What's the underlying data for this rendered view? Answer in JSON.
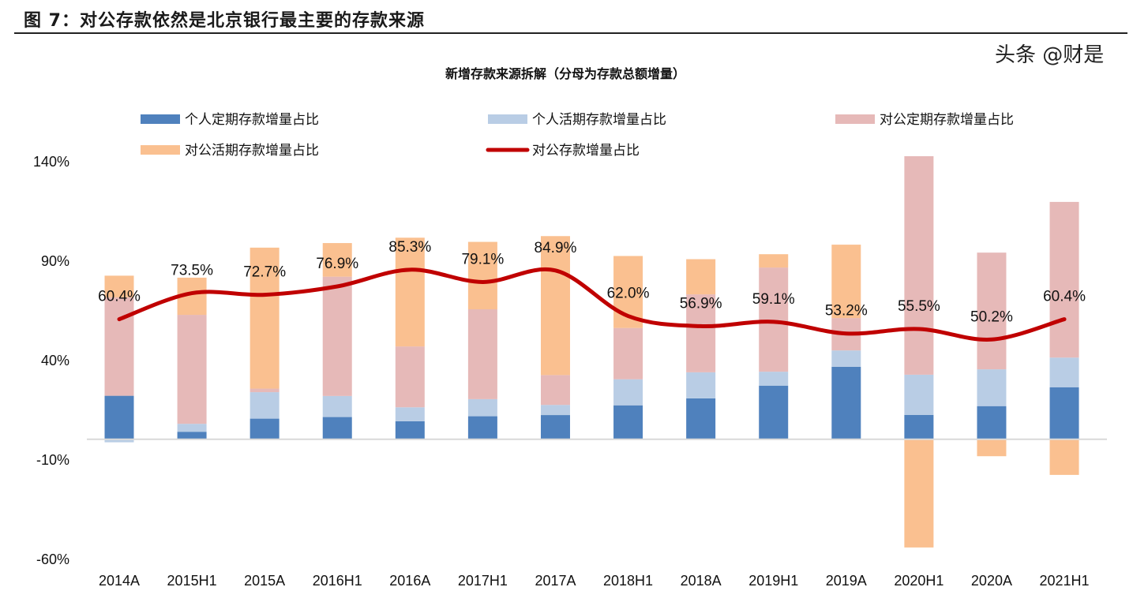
{
  "figure_title": "图 7：对公存款依然是北京银行最主要的存款来源",
  "watermark": "头条 @财是",
  "chart_data": {
    "type": "bar",
    "stacked": true,
    "title": "新增存款来源拆解（分母为存款总额增量）",
    "xlabel": "",
    "ylabel": "",
    "ylim": [
      -60,
      140
    ],
    "yticks": [
      140,
      90,
      40,
      -10,
      -60
    ],
    "ytick_labels": [
      "140%",
      "90%",
      "40%",
      "-10%",
      "-60%"
    ],
    "grid": false,
    "legend_placement": "top",
    "categories": [
      "2014A",
      "2015H1",
      "2015A",
      "2016H1",
      "2016A",
      "2017H1",
      "2017A",
      "2018H1",
      "2018A",
      "2019H1",
      "2019A",
      "2020H1",
      "2020A",
      "2021H1"
    ],
    "series": [
      {
        "name": "个人定期存款增量占比",
        "type": "bar",
        "color": "#4F81BD",
        "values": [
          21.9,
          3.8,
          10.4,
          11.2,
          9.1,
          11.6,
          12.2,
          17.1,
          20.6,
          27.0,
          36.5,
          12.3,
          16.7,
          26.2
        ]
      },
      {
        "name": "个人活期存款增量占比",
        "type": "bar",
        "color": "#B9CDE5",
        "values": [
          -1.5,
          4.0,
          13.3,
          10.6,
          7.0,
          8.6,
          5.1,
          13.1,
          13.1,
          7.0,
          8.2,
          20.2,
          18.5,
          14.9
        ]
      },
      {
        "name": "对公定期存款增量占比",
        "type": "bar",
        "color": "#E6B9B8",
        "values": [
          49.5,
          54.8,
          1.8,
          60.0,
          30.6,
          45.2,
          15.0,
          25.8,
          39.2,
          52.4,
          16.3,
          109.9,
          58.7,
          78.3
        ]
      },
      {
        "name": "对公活期存款增量占比",
        "type": "bar",
        "color": "#FAC090",
        "values": [
          10.9,
          18.7,
          70.9,
          16.9,
          54.7,
          33.9,
          69.9,
          36.2,
          17.7,
          6.7,
          36.9,
          -54.4,
          -8.5,
          -17.9
        ]
      },
      {
        "name": "对公存款增量占比",
        "type": "line",
        "color": "#C00000",
        "values": [
          60.4,
          73.5,
          72.7,
          76.9,
          85.3,
          79.1,
          84.9,
          62.0,
          56.9,
          59.1,
          53.2,
          55.5,
          50.2,
          60.4
        ],
        "data_labels": [
          "60.4%",
          "73.5%",
          "72.7%",
          "76.9%",
          "85.3%",
          "79.1%",
          "84.9%",
          "62.0%",
          "56.9%",
          "59.1%",
          "53.2%",
          "55.5%",
          "50.2%",
          "60.4%"
        ]
      }
    ]
  }
}
